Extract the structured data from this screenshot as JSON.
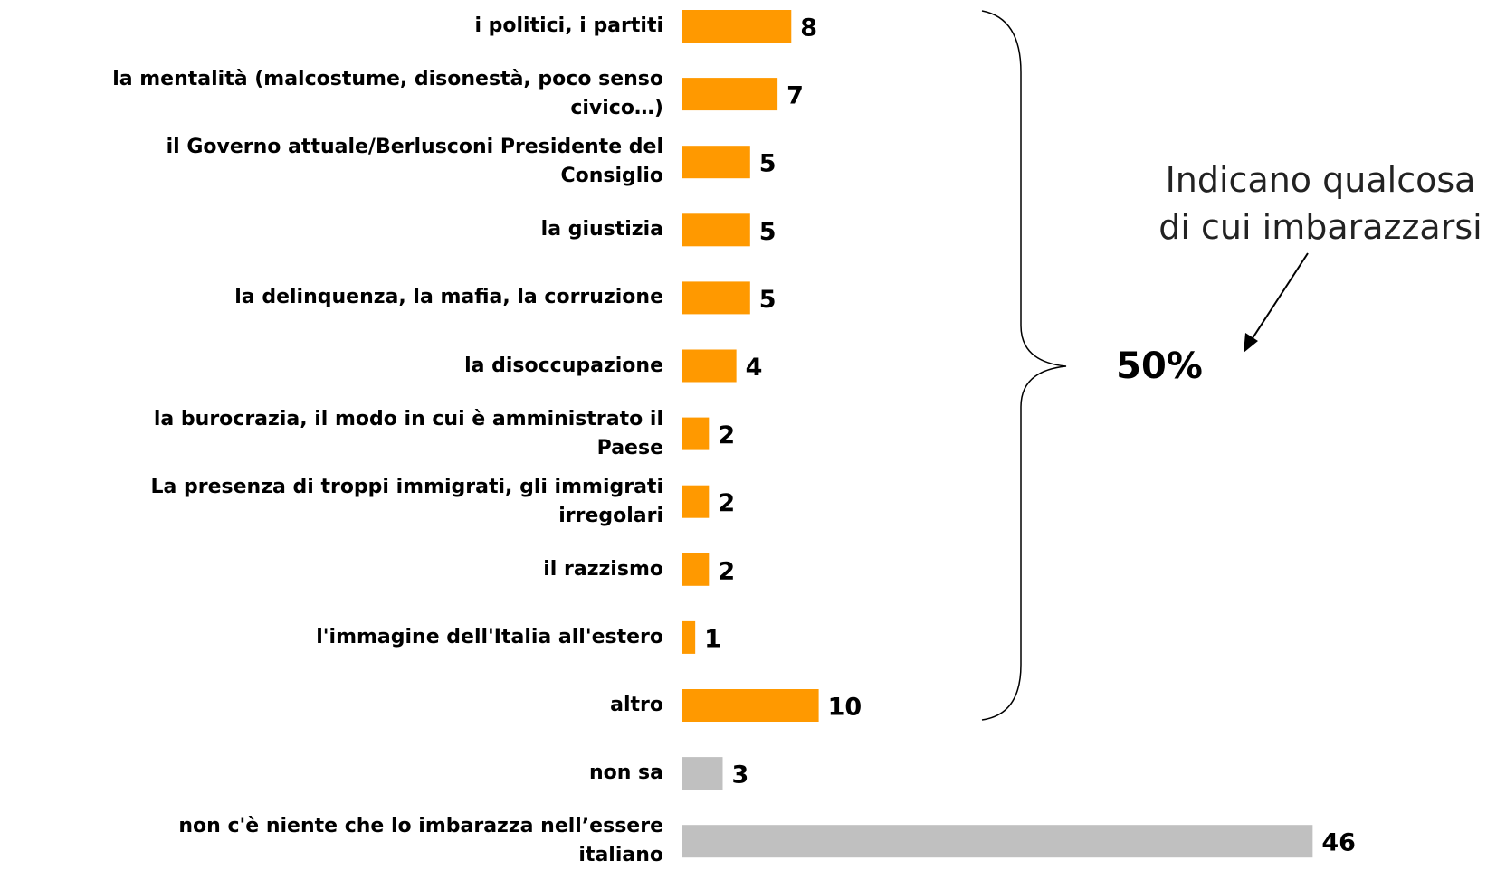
{
  "chart_data": {
    "type": "bar",
    "orientation": "horizontal",
    "categories": [
      "i politici, i partiti",
      "la mentalità (malcostume, disonestà, poco senso\ncivico…)",
      "il Governo attuale/Berlusconi Presidente del\nConsiglio",
      "la giustizia",
      "la delinquenza, la mafia, la corruzione",
      "la disoccupazione",
      "la burocrazia, il modo in cui è amministrato il\nPaese",
      "La presenza di troppi immigrati, gli immigrati\nirregolari",
      "il razzismo",
      "l'immagine dell'Italia all'estero",
      "altro",
      "non sa",
      "non c'è niente che lo imbarazza nell’essere\nitaliano"
    ],
    "values": [
      8,
      7,
      5,
      5,
      5,
      4,
      2,
      2,
      2,
      1,
      10,
      3,
      46
    ],
    "colors": [
      "#FF9900",
      "#FF9900",
      "#FF9900",
      "#FF9900",
      "#FF9900",
      "#FF9900",
      "#FF9900",
      "#FF9900",
      "#FF9900",
      "#FF9900",
      "#FF9900",
      "#C0C0C0",
      "#C0C0C0"
    ],
    "xlim": [
      0,
      50
    ],
    "annotations": [
      "Indicano qualcosa\ndi cui imbarazzarsi",
      "50%"
    ]
  }
}
